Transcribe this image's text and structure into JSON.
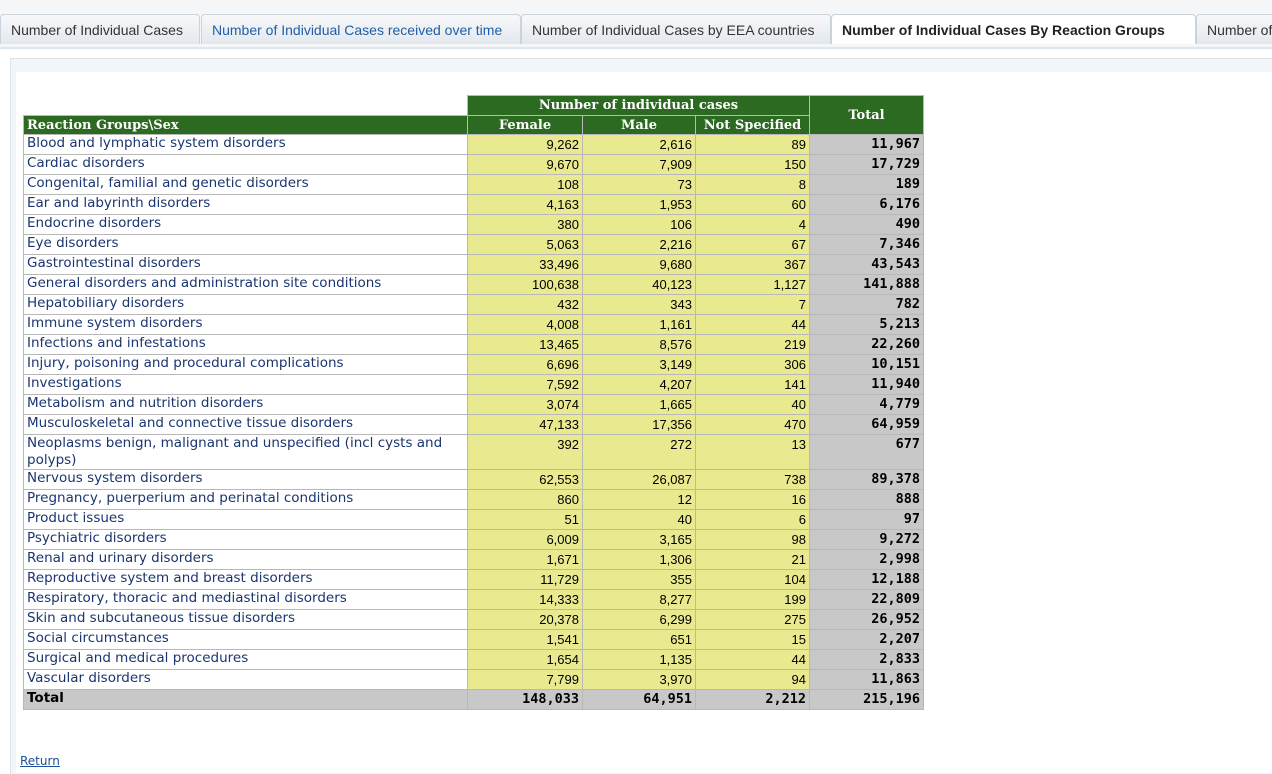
{
  "tabs": {
    "items": [
      "Number of Individual Cases",
      "Number of Individual Cases received over time",
      "Number of Individual Cases by EEA countries",
      "Number of Individual Cases By Reaction Groups",
      "Number of"
    ],
    "active": 3
  },
  "table": {
    "corner": "Reaction Groups\\Sex",
    "group_header": "Number of individual cases",
    "total_header": "Total",
    "columns": [
      "Female",
      "Male",
      "Not Specified"
    ],
    "rows": [
      [
        "Blood and lymphatic system disorders",
        "9,262",
        "2,616",
        "89",
        "11,967"
      ],
      [
        "Cardiac disorders",
        "9,670",
        "7,909",
        "150",
        "17,729"
      ],
      [
        "Congenital, familial and genetic disorders",
        "108",
        "73",
        "8",
        "189"
      ],
      [
        "Ear and labyrinth disorders",
        "4,163",
        "1,953",
        "60",
        "6,176"
      ],
      [
        "Endocrine disorders",
        "380",
        "106",
        "4",
        "490"
      ],
      [
        "Eye disorders",
        "5,063",
        "2,216",
        "67",
        "7,346"
      ],
      [
        "Gastrointestinal disorders",
        "33,496",
        "9,680",
        "367",
        "43,543"
      ],
      [
        "General disorders and administration site conditions",
        "100,638",
        "40,123",
        "1,127",
        "141,888"
      ],
      [
        "Hepatobiliary disorders",
        "432",
        "343",
        "7",
        "782"
      ],
      [
        "Immune system disorders",
        "4,008",
        "1,161",
        "44",
        "5,213"
      ],
      [
        "Infections and infestations",
        "13,465",
        "8,576",
        "219",
        "22,260"
      ],
      [
        "Injury, poisoning and procedural complications",
        "6,696",
        "3,149",
        "306",
        "10,151"
      ],
      [
        "Investigations",
        "7,592",
        "4,207",
        "141",
        "11,940"
      ],
      [
        "Metabolism and nutrition disorders",
        "3,074",
        "1,665",
        "40",
        "4,779"
      ],
      [
        "Musculoskeletal and connective tissue disorders",
        "47,133",
        "17,356",
        "470",
        "64,959"
      ],
      [
        "Neoplasms benign, malignant and unspecified (incl cysts and polyps)",
        "392",
        "272",
        "13",
        "677"
      ],
      [
        "Nervous system disorders",
        "62,553",
        "26,087",
        "738",
        "89,378"
      ],
      [
        "Pregnancy, puerperium and perinatal conditions",
        "860",
        "12",
        "16",
        "888"
      ],
      [
        "Product issues",
        "51",
        "40",
        "6",
        "97"
      ],
      [
        "Psychiatric disorders",
        "6,009",
        "3,165",
        "98",
        "9,272"
      ],
      [
        "Renal and urinary disorders",
        "1,671",
        "1,306",
        "21",
        "2,998"
      ],
      [
        "Reproductive system and breast disorders",
        "11,729",
        "355",
        "104",
        "12,188"
      ],
      [
        "Respiratory, thoracic and mediastinal disorders",
        "14,333",
        "8,277",
        "199",
        "22,809"
      ],
      [
        "Skin and subcutaneous tissue disorders",
        "20,378",
        "6,299",
        "275",
        "26,952"
      ],
      [
        "Social circumstances",
        "1,541",
        "651",
        "15",
        "2,207"
      ],
      [
        "Surgical and medical procedures",
        "1,654",
        "1,135",
        "44",
        "2,833"
      ],
      [
        "Vascular disorders",
        "7,799",
        "3,970",
        "94",
        "11,863"
      ]
    ],
    "total_row": [
      "Total",
      "148,033",
      "64,951",
      "2,212",
      "215,196"
    ]
  },
  "return_link": "Return"
}
